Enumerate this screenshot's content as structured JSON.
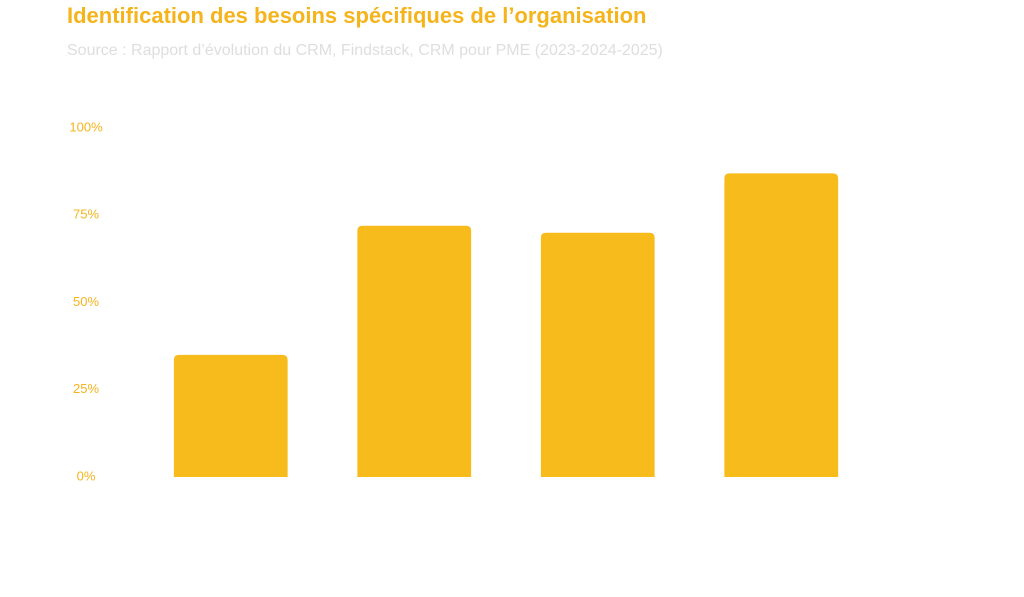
{
  "chart_data": {
    "type": "bar",
    "title": "Identification des besoins spécifiques de l’organisation",
    "subtitle": "Source : Rapport d’évolution du CRM, Findstack, CRM pour PME (2023-2024-2025)",
    "categories": [
      null,
      null,
      null,
      null
    ],
    "values": [
      35,
      72,
      70,
      87
    ],
    "color": "#f8bb1c",
    "ylim": [
      0,
      100
    ],
    "yticks": [
      {
        "value": 0,
        "label": "0%"
      },
      {
        "value": 25,
        "label": "25%"
      },
      {
        "value": 50,
        "label": "50%"
      },
      {
        "value": 75,
        "label": "75%"
      },
      {
        "value": 100,
        "label": "100%"
      }
    ],
    "grid": false
  }
}
